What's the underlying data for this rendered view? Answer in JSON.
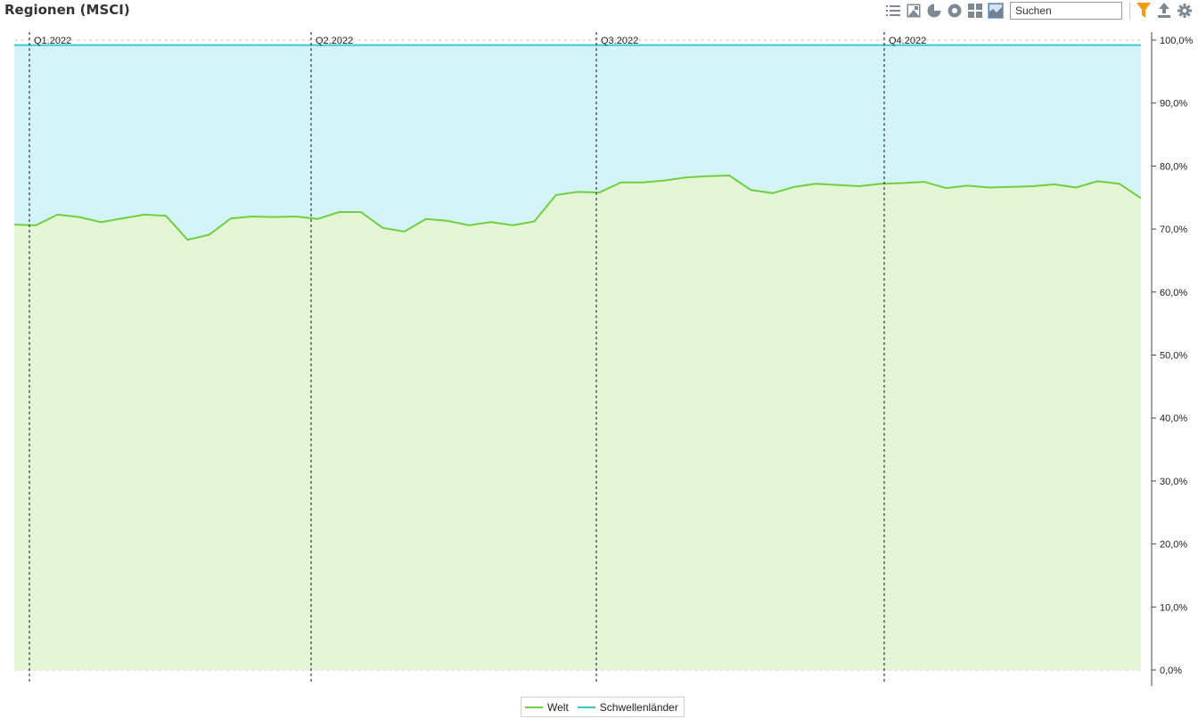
{
  "title": "Regionen (MSCI)",
  "toolbar": {
    "icons": [
      "list-icon",
      "image-icon",
      "pie-icon",
      "donut-icon",
      "grid-icon",
      "area-chart-icon",
      "filter-icon",
      "export-icon",
      "gear-icon"
    ],
    "search_placeholder": "Suchen",
    "active_view": "area-chart-icon",
    "filter_color": "#f39c12"
  },
  "chart_data": {
    "type": "area",
    "stacked": true,
    "percent_axis": true,
    "ylim": [
      0,
      100
    ],
    "yticks": [
      "0,0%",
      "10,0%",
      "20,0%",
      "30,0%",
      "40,0%",
      "50,0%",
      "60,0%",
      "70,0%",
      "80,0%",
      "90,0%",
      "100,0%"
    ],
    "y_axis_side": "right",
    "grid": true,
    "quarter_markers": [
      "Q1.2022",
      "Q2.2022",
      "Q3.2022",
      "Q4.2022"
    ],
    "series": [
      {
        "name": "Welt",
        "color": "#6fcf3f",
        "fill": "#e4f5d6",
        "values": [
          70.7,
          70.6,
          72.3,
          71.9,
          71.1,
          71.7,
          72.3,
          72.1,
          68.3,
          69.1,
          71.7,
          72.0,
          71.9,
          72.0,
          71.6,
          72.7,
          72.7,
          70.2,
          69.6,
          71.6,
          71.3,
          70.6,
          71.1,
          70.6,
          71.2,
          75.4,
          75.9,
          75.8,
          77.4,
          77.4,
          77.7,
          78.2,
          78.4,
          78.5,
          76.2,
          75.7,
          76.7,
          77.2,
          77.0,
          76.8,
          77.2,
          77.3,
          77.5,
          76.5,
          76.9,
          76.6,
          76.7,
          76.8,
          77.1,
          76.6,
          77.6,
          77.2,
          74.9
        ]
      },
      {
        "name": "Schwellenländer",
        "color": "#3cc7cf",
        "fill": "#d4f3f6",
        "values": [
          28.5,
          28.6,
          26.9,
          27.3,
          28.1,
          27.5,
          26.9,
          27.1,
          30.9,
          30.1,
          27.5,
          27.2,
          27.3,
          27.2,
          27.6,
          26.5,
          26.5,
          29.0,
          29.6,
          27.6,
          27.9,
          28.6,
          28.1,
          28.6,
          28.0,
          23.8,
          23.3,
          23.4,
          21.8,
          21.8,
          21.5,
          21.0,
          20.8,
          20.7,
          23.0,
          23.5,
          22.5,
          22.0,
          22.2,
          22.4,
          22.0,
          21.9,
          21.7,
          22.7,
          22.3,
          22.6,
          22.5,
          22.4,
          22.1,
          22.6,
          21.6,
          22.0,
          24.3
        ]
      }
    ]
  },
  "legend": [
    {
      "label": "Welt",
      "color": "#6fcf3f"
    },
    {
      "label": "Schwellenländer",
      "color": "#3cc7cf"
    }
  ]
}
